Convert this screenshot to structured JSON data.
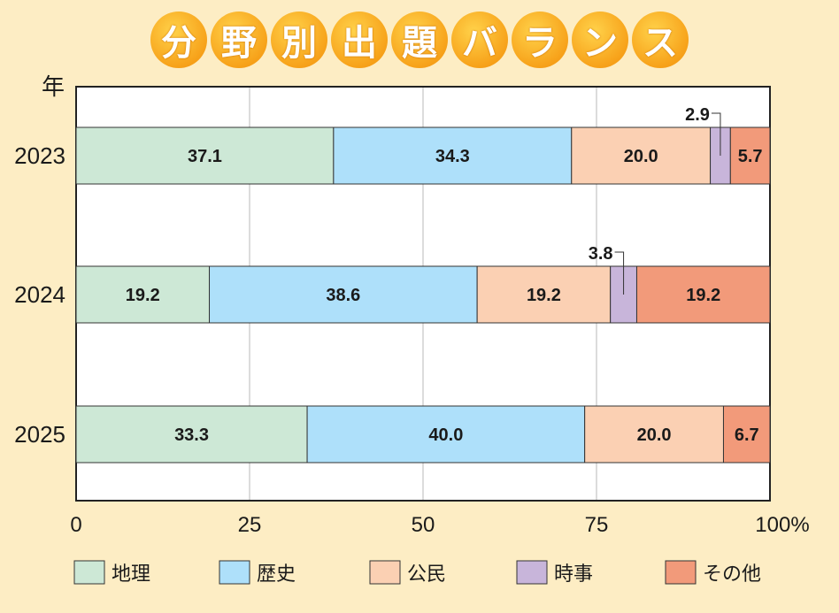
{
  "title_chars": [
    "分",
    "野",
    "別",
    "出",
    "題",
    "バ",
    "ラ",
    "ン",
    "ス"
  ],
  "chart_data": {
    "type": "bar",
    "orientation": "horizontal",
    "stacked": true,
    "ylabel": "年",
    "categories": [
      "2023",
      "2024",
      "2025"
    ],
    "series": [
      {
        "name": "地理",
        "color": "#cde8d6",
        "values": [
          37.1,
          19.2,
          33.3
        ]
      },
      {
        "name": "歴史",
        "color": "#aee0fa",
        "values": [
          34.3,
          38.6,
          40.0
        ]
      },
      {
        "name": "公民",
        "color": "#fbd0b3",
        "values": [
          20.0,
          19.2,
          20.0
        ]
      },
      {
        "name": "時事",
        "color": "#c8b5da",
        "values": [
          2.9,
          3.8,
          0
        ]
      },
      {
        "name": "その他",
        "color": "#f29a7a",
        "values": [
          5.7,
          19.2,
          6.7
        ]
      }
    ],
    "data_labels": [
      [
        "37.1",
        "34.3",
        "20.0",
        "2.9",
        "5.7"
      ],
      [
        "19.2",
        "38.6",
        "19.2",
        "3.8",
        "19.2"
      ],
      [
        "33.3",
        "40.0",
        "20.0",
        "",
        "6.7"
      ]
    ],
    "xticks": [
      "0",
      "25",
      "50",
      "75",
      "100%"
    ],
    "xlim": [
      0,
      100
    ],
    "grid": true,
    "legend_position": "bottom"
  }
}
